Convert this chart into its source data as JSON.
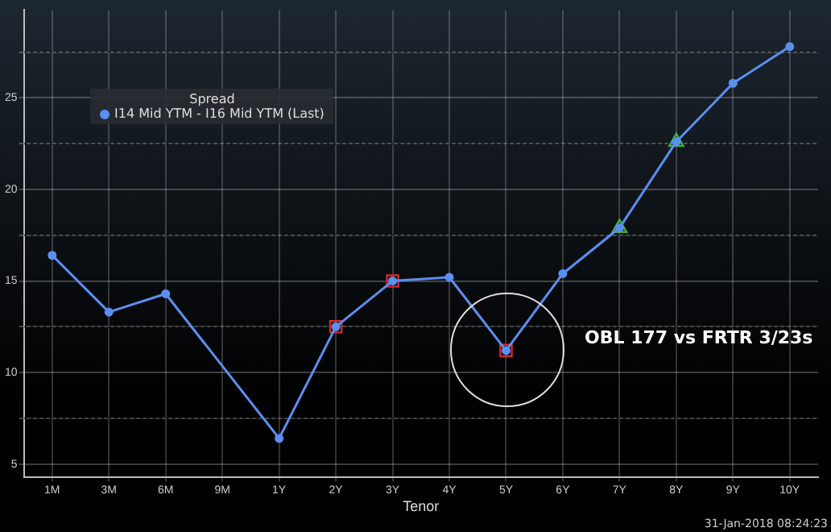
{
  "chart_data": {
    "type": "line",
    "xlabel": "Tenor",
    "legend_title": "Spread",
    "legend": "top left",
    "grid": true,
    "line_style": "solid",
    "categories": [
      "1M",
      "3M",
      "6M",
      "9M",
      "1Y",
      "2Y",
      "3Y",
      "4Y",
      "5Y",
      "6Y",
      "7Y",
      "8Y",
      "9Y",
      "10Y"
    ],
    "ylim": [
      4.3,
      29.8
    ],
    "yticks": [
      5,
      {
        "value": 7.5,
        "label": null
      },
      10,
      {
        "value": 12.5,
        "label": null
      },
      15,
      {
        "value": 17.5,
        "label": null
      },
      20,
      {
        "value": 22.5,
        "label": null
      },
      25,
      {
        "value": 27.5,
        "label": null
      }
    ],
    "series": [
      {
        "name": "I14 Mid YTM - I16 Mid YTM (Last)",
        "color": "#5b8ff0",
        "marker": "circle",
        "values": [
          16.4,
          13.3,
          14.3,
          null,
          6.4,
          12.5,
          15.0,
          15.2,
          11.2,
          15.4,
          17.9,
          22.6,
          25.8,
          27.8
        ]
      },
      {
        "type": "scatter",
        "color": "#d62a2a",
        "marker": "square",
        "values": [
          null,
          null,
          null,
          null,
          null,
          12.5,
          15.0,
          null,
          11.2,
          null,
          null,
          null,
          null,
          null
        ]
      },
      {
        "type": "scatter",
        "color": "#3fae3f",
        "marker": "triangle",
        "values": [
          null,
          null,
          null,
          null,
          null,
          null,
          null,
          null,
          null,
          null,
          17.9,
          22.6,
          null,
          null
        ]
      }
    ],
    "annotations": [
      "OBL 177 vs FRTR 3/23s",
      "31-Jan-2018 08:24:23"
    ]
  }
}
